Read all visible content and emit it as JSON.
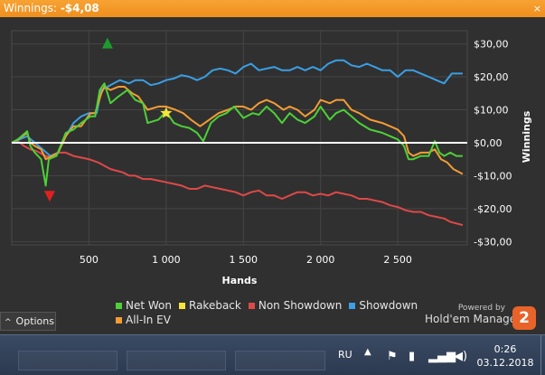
{
  "window": {
    "title_label": "Winnings:",
    "title_value": "-$4,08"
  },
  "chart_data": {
    "type": "line",
    "xlabel": "Hands",
    "ylabel": "Winnings",
    "xlim": [
      0,
      2950
    ],
    "ylim": [
      -31,
      34
    ],
    "x_ticks": [
      500,
      1000,
      1500,
      2000,
      2500
    ],
    "x_tick_labels": [
      "500",
      "1 000",
      "1 500",
      "2 000",
      "2 500"
    ],
    "y_ticks": [
      30,
      20,
      10,
      0,
      -10,
      -20,
      -30
    ],
    "y_tick_labels": [
      "$30,00",
      "$20,00",
      "$10,00",
      "$0,00",
      "-$10,00",
      "-$20,00",
      "-$30,00"
    ],
    "grid": true,
    "zero_line": true,
    "series": [
      {
        "name": "Net Won",
        "color": "#4cd137",
        "points": [
          [
            0,
            0
          ],
          [
            40,
            1
          ],
          [
            100,
            3.5
          ],
          [
            120,
            -1
          ],
          [
            150,
            -3
          ],
          [
            190,
            -5
          ],
          [
            220,
            -13
          ],
          [
            240,
            -5
          ],
          [
            290,
            -4
          ],
          [
            350,
            3
          ],
          [
            400,
            4
          ],
          [
            450,
            6
          ],
          [
            510,
            8
          ],
          [
            540,
            8
          ],
          [
            570,
            16
          ],
          [
            600,
            18
          ],
          [
            640,
            12
          ],
          [
            690,
            14
          ],
          [
            750,
            16
          ],
          [
            800,
            13
          ],
          [
            850,
            12
          ],
          [
            880,
            6
          ],
          [
            950,
            7
          ],
          [
            1000,
            9.5
          ],
          [
            1050,
            6
          ],
          [
            1100,
            5
          ],
          [
            1150,
            4.5
          ],
          [
            1200,
            3
          ],
          [
            1240,
            0.5
          ],
          [
            1290,
            6
          ],
          [
            1340,
            8
          ],
          [
            1390,
            9
          ],
          [
            1440,
            11
          ],
          [
            1500,
            7.5
          ],
          [
            1560,
            9
          ],
          [
            1600,
            8.5
          ],
          [
            1650,
            11
          ],
          [
            1700,
            9
          ],
          [
            1750,
            6
          ],
          [
            1800,
            9
          ],
          [
            1850,
            7
          ],
          [
            1900,
            6
          ],
          [
            1960,
            8
          ],
          [
            2000,
            11
          ],
          [
            2060,
            7
          ],
          [
            2100,
            9
          ],
          [
            2150,
            10
          ],
          [
            2200,
            8
          ],
          [
            2250,
            6
          ],
          [
            2320,
            4
          ],
          [
            2400,
            3
          ],
          [
            2450,
            2
          ],
          [
            2500,
            1
          ],
          [
            2540,
            -1
          ],
          [
            2570,
            -5
          ],
          [
            2600,
            -5
          ],
          [
            2650,
            -4
          ],
          [
            2700,
            -4
          ],
          [
            2740,
            0.5
          ],
          [
            2770,
            -3
          ],
          [
            2800,
            -4
          ],
          [
            2840,
            -3
          ],
          [
            2880,
            -4
          ],
          [
            2920,
            -4
          ]
        ]
      },
      {
        "name": "Rakeback",
        "color": "#f5e53a",
        "points": []
      },
      {
        "name": "Non Showdown",
        "color": "#e04848",
        "points": [
          [
            0,
            0
          ],
          [
            40,
            0.5
          ],
          [
            80,
            -1
          ],
          [
            120,
            -2
          ],
          [
            160,
            -2.5
          ],
          [
            220,
            -4
          ],
          [
            260,
            -4.5
          ],
          [
            300,
            -3
          ],
          [
            350,
            -3
          ],
          [
            400,
            -4
          ],
          [
            450,
            -4.5
          ],
          [
            500,
            -5
          ],
          [
            560,
            -6
          ],
          [
            600,
            -7
          ],
          [
            640,
            -8
          ],
          [
            680,
            -8.5
          ],
          [
            720,
            -9
          ],
          [
            760,
            -10
          ],
          [
            800,
            -10
          ],
          [
            850,
            -11
          ],
          [
            900,
            -11
          ],
          [
            950,
            -11.5
          ],
          [
            1000,
            -12
          ],
          [
            1050,
            -12.5
          ],
          [
            1100,
            -13
          ],
          [
            1150,
            -14
          ],
          [
            1200,
            -14
          ],
          [
            1250,
            -13
          ],
          [
            1300,
            -13.5
          ],
          [
            1350,
            -14
          ],
          [
            1400,
            -14.5
          ],
          [
            1450,
            -15
          ],
          [
            1500,
            -16
          ],
          [
            1550,
            -15
          ],
          [
            1600,
            -14.5
          ],
          [
            1650,
            -16
          ],
          [
            1700,
            -16
          ],
          [
            1750,
            -17
          ],
          [
            1800,
            -16
          ],
          [
            1850,
            -15
          ],
          [
            1900,
            -15
          ],
          [
            1950,
            -16
          ],
          [
            2000,
            -15.5
          ],
          [
            2050,
            -16
          ],
          [
            2100,
            -15
          ],
          [
            2150,
            -15.5
          ],
          [
            2200,
            -16
          ],
          [
            2250,
            -17
          ],
          [
            2300,
            -17
          ],
          [
            2350,
            -17.5
          ],
          [
            2400,
            -18
          ],
          [
            2450,
            -19
          ],
          [
            2500,
            -19.5
          ],
          [
            2550,
            -20.5
          ],
          [
            2600,
            -21
          ],
          [
            2650,
            -21
          ],
          [
            2700,
            -22
          ],
          [
            2750,
            -22.5
          ],
          [
            2800,
            -23
          ],
          [
            2840,
            -24
          ],
          [
            2880,
            -24.5
          ],
          [
            2920,
            -25
          ]
        ]
      },
      {
        "name": "Showdown",
        "color": "#3a9fe4",
        "points": [
          [
            0,
            0
          ],
          [
            50,
            1
          ],
          [
            100,
            2
          ],
          [
            150,
            0
          ],
          [
            200,
            -2
          ],
          [
            250,
            -4
          ],
          [
            300,
            -3
          ],
          [
            350,
            2
          ],
          [
            400,
            6
          ],
          [
            450,
            8
          ],
          [
            500,
            9
          ],
          [
            550,
            9
          ],
          [
            580,
            16
          ],
          [
            620,
            17
          ],
          [
            660,
            18
          ],
          [
            700,
            19
          ],
          [
            760,
            18
          ],
          [
            800,
            19
          ],
          [
            850,
            19
          ],
          [
            900,
            17.5
          ],
          [
            950,
            18
          ],
          [
            1000,
            19
          ],
          [
            1050,
            19.5
          ],
          [
            1100,
            20.5
          ],
          [
            1150,
            20
          ],
          [
            1200,
            19
          ],
          [
            1250,
            20
          ],
          [
            1300,
            22
          ],
          [
            1350,
            22.5
          ],
          [
            1400,
            22
          ],
          [
            1450,
            21
          ],
          [
            1500,
            23
          ],
          [
            1550,
            24
          ],
          [
            1600,
            22
          ],
          [
            1650,
            22.5
          ],
          [
            1700,
            23
          ],
          [
            1750,
            22
          ],
          [
            1800,
            22
          ],
          [
            1850,
            23
          ],
          [
            1900,
            22
          ],
          [
            1950,
            23
          ],
          [
            2000,
            22
          ],
          [
            2050,
            24
          ],
          [
            2100,
            25
          ],
          [
            2150,
            25
          ],
          [
            2200,
            23.5
          ],
          [
            2250,
            23
          ],
          [
            2300,
            24
          ],
          [
            2350,
            23
          ],
          [
            2400,
            22
          ],
          [
            2450,
            22
          ],
          [
            2500,
            20
          ],
          [
            2550,
            22
          ],
          [
            2600,
            22
          ],
          [
            2650,
            21
          ],
          [
            2700,
            20
          ],
          [
            2750,
            19
          ],
          [
            2800,
            18
          ],
          [
            2850,
            21
          ],
          [
            2900,
            21
          ],
          [
            2920,
            21
          ]
        ]
      },
      {
        "name": "All-In EV",
        "color": "#f39c34",
        "points": [
          [
            0,
            0
          ],
          [
            40,
            1
          ],
          [
            100,
            3
          ],
          [
            120,
            0
          ],
          [
            150,
            -1
          ],
          [
            190,
            -2
          ],
          [
            220,
            -5
          ],
          [
            260,
            -4
          ],
          [
            300,
            -3
          ],
          [
            350,
            2
          ],
          [
            400,
            5
          ],
          [
            450,
            5
          ],
          [
            510,
            9
          ],
          [
            540,
            9
          ],
          [
            580,
            15
          ],
          [
            600,
            17
          ],
          [
            640,
            16
          ],
          [
            690,
            17
          ],
          [
            730,
            17
          ],
          [
            780,
            15
          ],
          [
            820,
            14
          ],
          [
            880,
            10
          ],
          [
            950,
            11
          ],
          [
            1000,
            11
          ],
          [
            1060,
            10
          ],
          [
            1110,
            9
          ],
          [
            1160,
            7
          ],
          [
            1220,
            5
          ],
          [
            1280,
            7
          ],
          [
            1340,
            9
          ],
          [
            1400,
            10
          ],
          [
            1450,
            11
          ],
          [
            1500,
            11
          ],
          [
            1550,
            10
          ],
          [
            1600,
            12
          ],
          [
            1650,
            13
          ],
          [
            1700,
            12
          ],
          [
            1760,
            10
          ],
          [
            1800,
            11
          ],
          [
            1850,
            10
          ],
          [
            1900,
            8
          ],
          [
            1960,
            10
          ],
          [
            2000,
            13
          ],
          [
            2060,
            12
          ],
          [
            2100,
            13
          ],
          [
            2150,
            13
          ],
          [
            2200,
            10
          ],
          [
            2250,
            9
          ],
          [
            2320,
            7
          ],
          [
            2400,
            6
          ],
          [
            2450,
            5
          ],
          [
            2500,
            4
          ],
          [
            2540,
            2
          ],
          [
            2570,
            -3
          ],
          [
            2600,
            -4
          ],
          [
            2650,
            -3
          ],
          [
            2700,
            -3
          ],
          [
            2740,
            -2
          ],
          [
            2780,
            -5
          ],
          [
            2820,
            -6
          ],
          [
            2860,
            -8
          ],
          [
            2900,
            -9
          ],
          [
            2920,
            -9.5
          ]
        ]
      }
    ],
    "markers": [
      {
        "name": "max",
        "shape": "triangle-up",
        "color": "#1e9b2e",
        "x": 620,
        "y": 30
      },
      {
        "name": "min",
        "shape": "triangle-down",
        "color": "#e02020",
        "x": 245,
        "y": -16
      },
      {
        "name": "rakeback-star",
        "shape": "star",
        "color": "#f5e53a",
        "x": 1000,
        "y": 9
      }
    ]
  },
  "legend": {
    "items": [
      {
        "label": "Net Won",
        "color": "#4cd137"
      },
      {
        "label": "Rakeback",
        "color": "#f5e53a"
      },
      {
        "label": "Non Showdown",
        "color": "#e04848"
      },
      {
        "label": "Showdown",
        "color": "#3a9fe4"
      },
      {
        "label": "All-In EV",
        "color": "#f39c34"
      }
    ]
  },
  "options_label": "Options",
  "powered": {
    "small": "Powered by",
    "brand": "Hold'em Manager",
    "logo_text": "2"
  },
  "taskbar": {
    "lang": "RU",
    "time": "0:26",
    "date": "03.12.2018"
  }
}
